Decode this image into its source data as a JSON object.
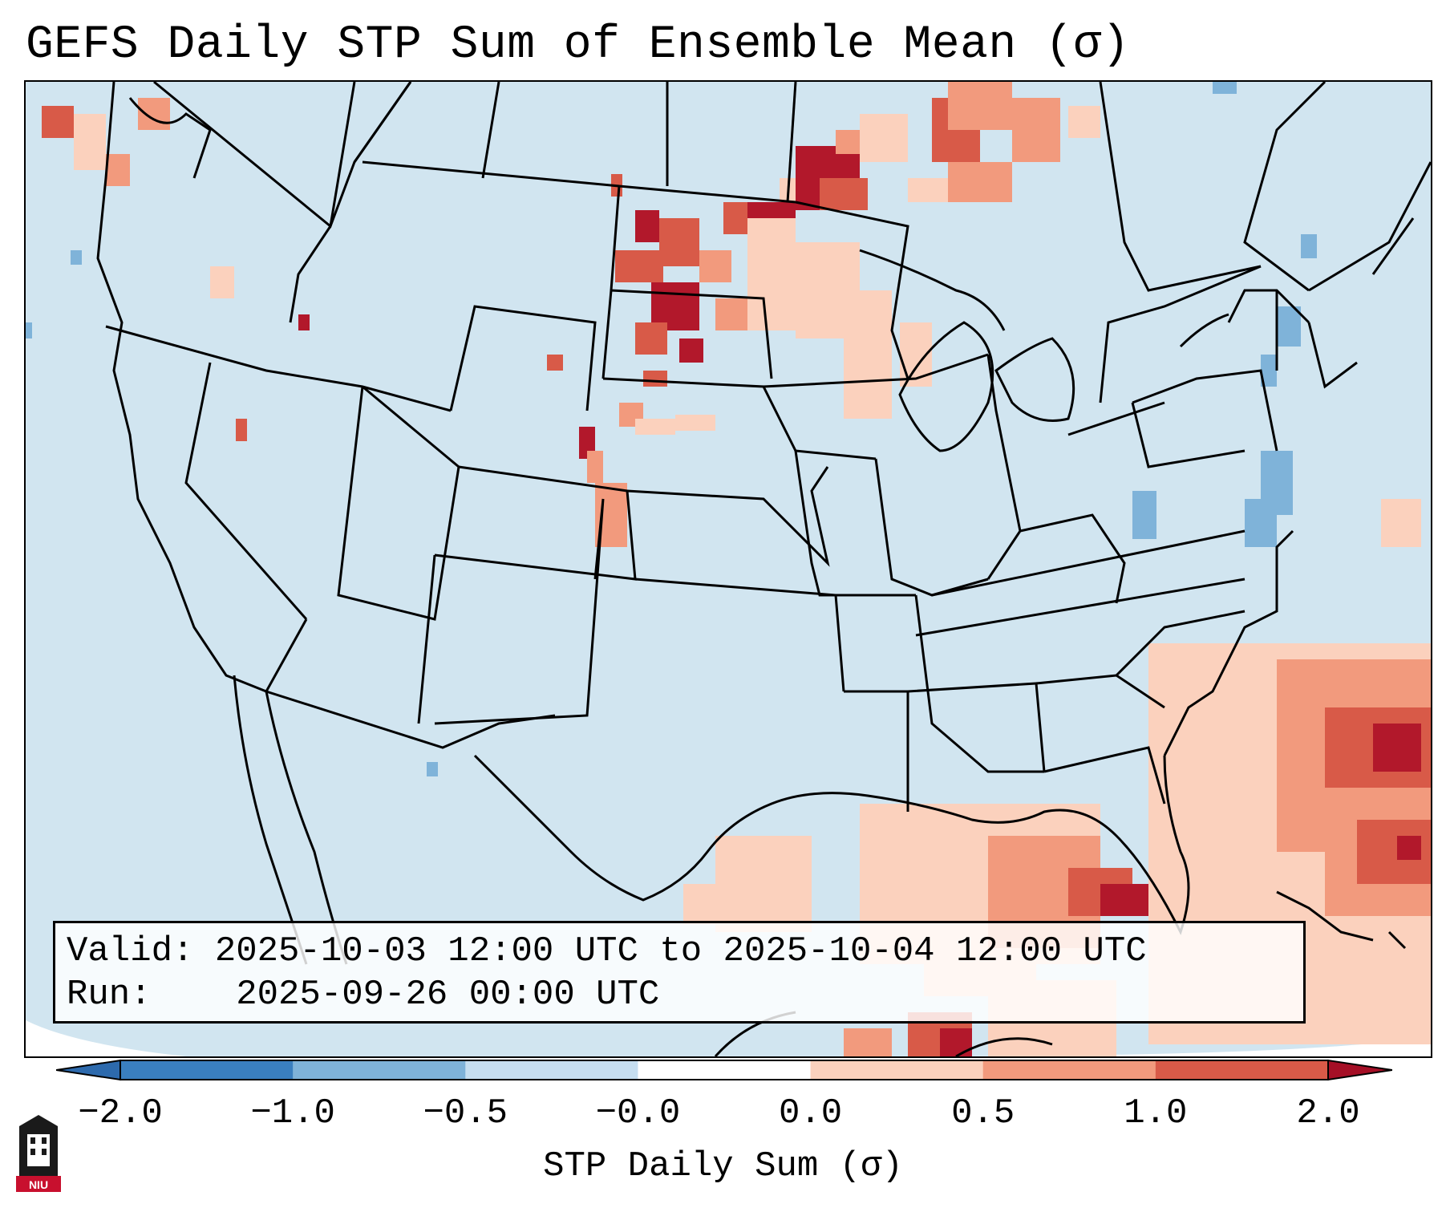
{
  "title": "GEFS Daily STP Sum of Ensemble Mean (σ)",
  "info": {
    "valid_label": "Valid:",
    "valid_value": "2025-10-03 12:00 UTC to 2025-10-04 12:00 UTC",
    "run_label": "Run:",
    "run_value": "2025-09-26 00:00 UTC"
  },
  "colorbar": {
    "label": "STP Daily Sum (σ)",
    "ticks": [
      "−2.0",
      "−1.0",
      "−0.5",
      "−0.0",
      "0.0",
      "0.5",
      "1.0",
      "2.0"
    ],
    "colors": [
      "#3a7fbf",
      "#7fb3d9",
      "#c6def0",
      "#ffffff",
      "#fbd1bd",
      "#f29a7d",
      "#d85a48",
      "#b2182b"
    ],
    "extend_low_color": "#2d6aad",
    "extend_high_color": "#a50f26"
  },
  "map": {
    "background_color": "#d1e5f0",
    "outside_color": "#ffffff",
    "regions": [
      {
        "name": "Northern Plains / Upper Midwest",
        "level": "1.0 to 2.0"
      },
      {
        "name": "Gulf of Mexico",
        "level": "0.0 to 1.0"
      },
      {
        "name": "Western Atlantic",
        "level": "0.0 to 2.0"
      }
    ]
  },
  "logo": {
    "text": "NIU"
  }
}
